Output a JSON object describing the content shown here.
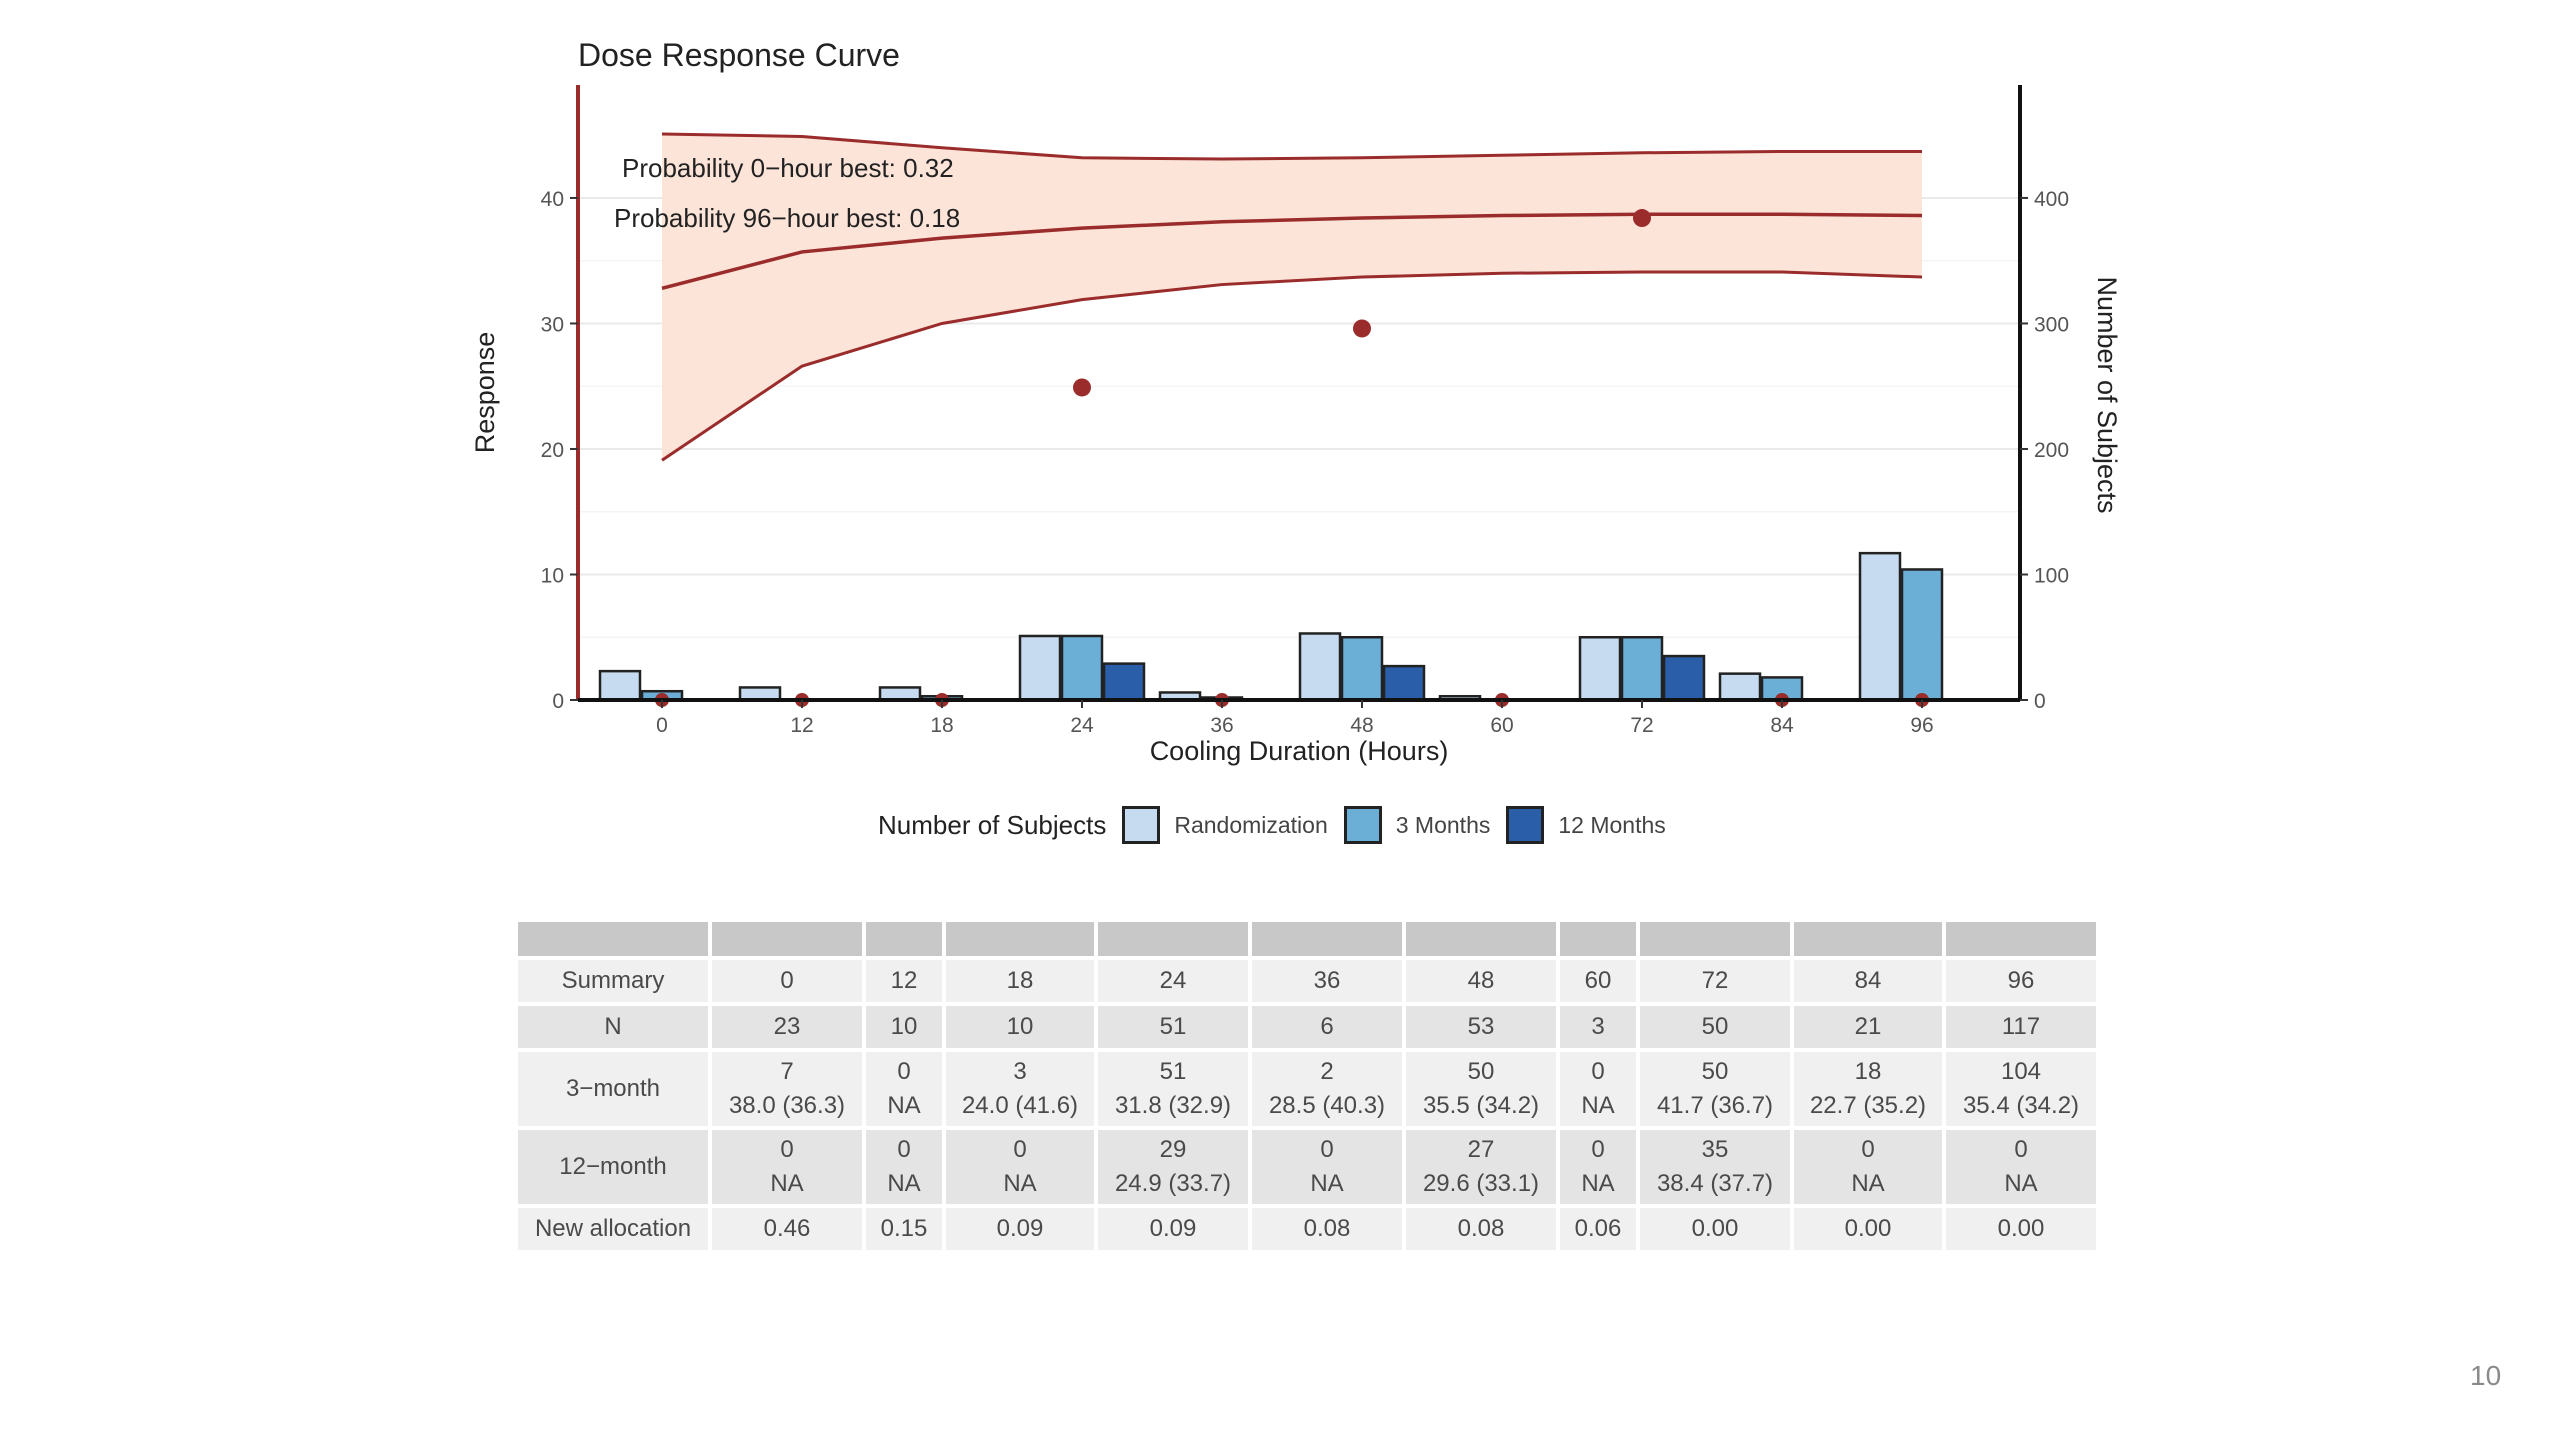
{
  "page_number": "10",
  "chart_data": {
    "type": "line",
    "title": "Dose Response Curve",
    "xlabel": "Cooling Duration (Hours)",
    "ylabel": "Response",
    "y2label": "Number of Subjects",
    "x_ticks": [
      "0",
      "12",
      "18",
      "24",
      "36",
      "48",
      "60",
      "72",
      "84",
      "96"
    ],
    "ylim": [
      0,
      49
    ],
    "y_ticks": [
      0,
      10,
      20,
      30,
      40
    ],
    "y2lim": [
      0,
      490
    ],
    "y2_ticks": [
      0,
      100,
      200,
      300,
      400
    ],
    "grid": "horizontal",
    "annotations": [
      "Probability 0−hour best: 0.32",
      "Probability 96−hour best: 0.18"
    ],
    "curve": {
      "x": [
        0,
        12,
        18,
        24,
        36,
        48,
        60,
        72,
        84,
        96
      ],
      "mean": [
        32.8,
        35.7,
        36.8,
        37.6,
        38.1,
        38.4,
        38.6,
        38.7,
        38.7,
        38.6
      ],
      "lower": [
        19.1,
        26.6,
        30.0,
        31.9,
        33.1,
        33.7,
        34.0,
        34.1,
        34.1,
        33.7
      ],
      "upper": [
        45.1,
        44.9,
        44.0,
        43.2,
        43.1,
        43.2,
        43.4,
        43.6,
        43.7,
        43.7
      ],
      "color": "#9b2c2c",
      "band_color": "#fce4d9"
    },
    "observed_points": [
      {
        "x": 0,
        "y": 0.0
      },
      {
        "x": 12,
        "y": 0.0
      },
      {
        "x": 18,
        "y": 0.0
      },
      {
        "x": 24,
        "y": 24.9
      },
      {
        "x": 36,
        "y": 0.0
      },
      {
        "x": 48,
        "y": 29.6
      },
      {
        "x": 60,
        "y": 0.0
      },
      {
        "x": 72,
        "y": 38.4
      },
      {
        "x": 84,
        "y": 0.0
      },
      {
        "x": 96,
        "y": 0.0
      }
    ],
    "bar_legend_title": "Number of Subjects",
    "bar_series": [
      {
        "name": "Randomization",
        "color": "#c6dbef",
        "values": [
          23,
          10,
          10,
          51,
          6,
          53,
          3,
          50,
          21,
          117
        ]
      },
      {
        "name": "3 Months",
        "color": "#6baed6",
        "values": [
          7,
          0,
          3,
          51,
          2,
          50,
          0,
          50,
          18,
          104
        ]
      },
      {
        "name": "12 Months",
        "color": "#2b5ea8",
        "values": [
          0,
          0,
          0,
          29,
          0,
          27,
          0,
          35,
          0,
          0
        ]
      }
    ]
  },
  "table": {
    "header": [
      "",
      "",
      "",
      "",
      "",
      "",
      "",
      "",
      "",
      "",
      ""
    ],
    "rows": [
      {
        "label": "Summary",
        "cells": [
          [
            "0"
          ],
          [
            "12"
          ],
          [
            "18"
          ],
          [
            "24"
          ],
          [
            "36"
          ],
          [
            "48"
          ],
          [
            "60"
          ],
          [
            "72"
          ],
          [
            "84"
          ],
          [
            "96"
          ]
        ]
      },
      {
        "label": "N",
        "cells": [
          [
            "23"
          ],
          [
            "10"
          ],
          [
            "10"
          ],
          [
            "51"
          ],
          [
            "6"
          ],
          [
            "53"
          ],
          [
            "3"
          ],
          [
            "50"
          ],
          [
            "21"
          ],
          [
            "117"
          ]
        ]
      },
      {
        "label": "3−month",
        "cells": [
          [
            "7",
            "38.0 (36.3)"
          ],
          [
            "0",
            "NA"
          ],
          [
            "3",
            "24.0 (41.6)"
          ],
          [
            "51",
            "31.8 (32.9)"
          ],
          [
            "2",
            "28.5 (40.3)"
          ],
          [
            "50",
            "35.5 (34.2)"
          ],
          [
            "0",
            "NA"
          ],
          [
            "50",
            "41.7 (36.7)"
          ],
          [
            "18",
            "22.7 (35.2)"
          ],
          [
            "104",
            "35.4 (34.2)"
          ]
        ]
      },
      {
        "label": "12−month",
        "cells": [
          [
            "0",
            "NA"
          ],
          [
            "0",
            "NA"
          ],
          [
            "0",
            "NA"
          ],
          [
            "29",
            "24.9 (33.7)"
          ],
          [
            "0",
            "NA"
          ],
          [
            "27",
            "29.6 (33.1)"
          ],
          [
            "0",
            "NA"
          ],
          [
            "35",
            "38.4 (37.7)"
          ],
          [
            "0",
            "NA"
          ],
          [
            "0",
            "NA"
          ]
        ]
      },
      {
        "label": "New allocation",
        "cells": [
          [
            "0.46"
          ],
          [
            "0.15"
          ],
          [
            "0.09"
          ],
          [
            "0.09"
          ],
          [
            "0.08"
          ],
          [
            "0.08"
          ],
          [
            "0.06"
          ],
          [
            "0.00"
          ],
          [
            "0.00"
          ],
          [
            "0.00"
          ]
        ]
      }
    ]
  }
}
